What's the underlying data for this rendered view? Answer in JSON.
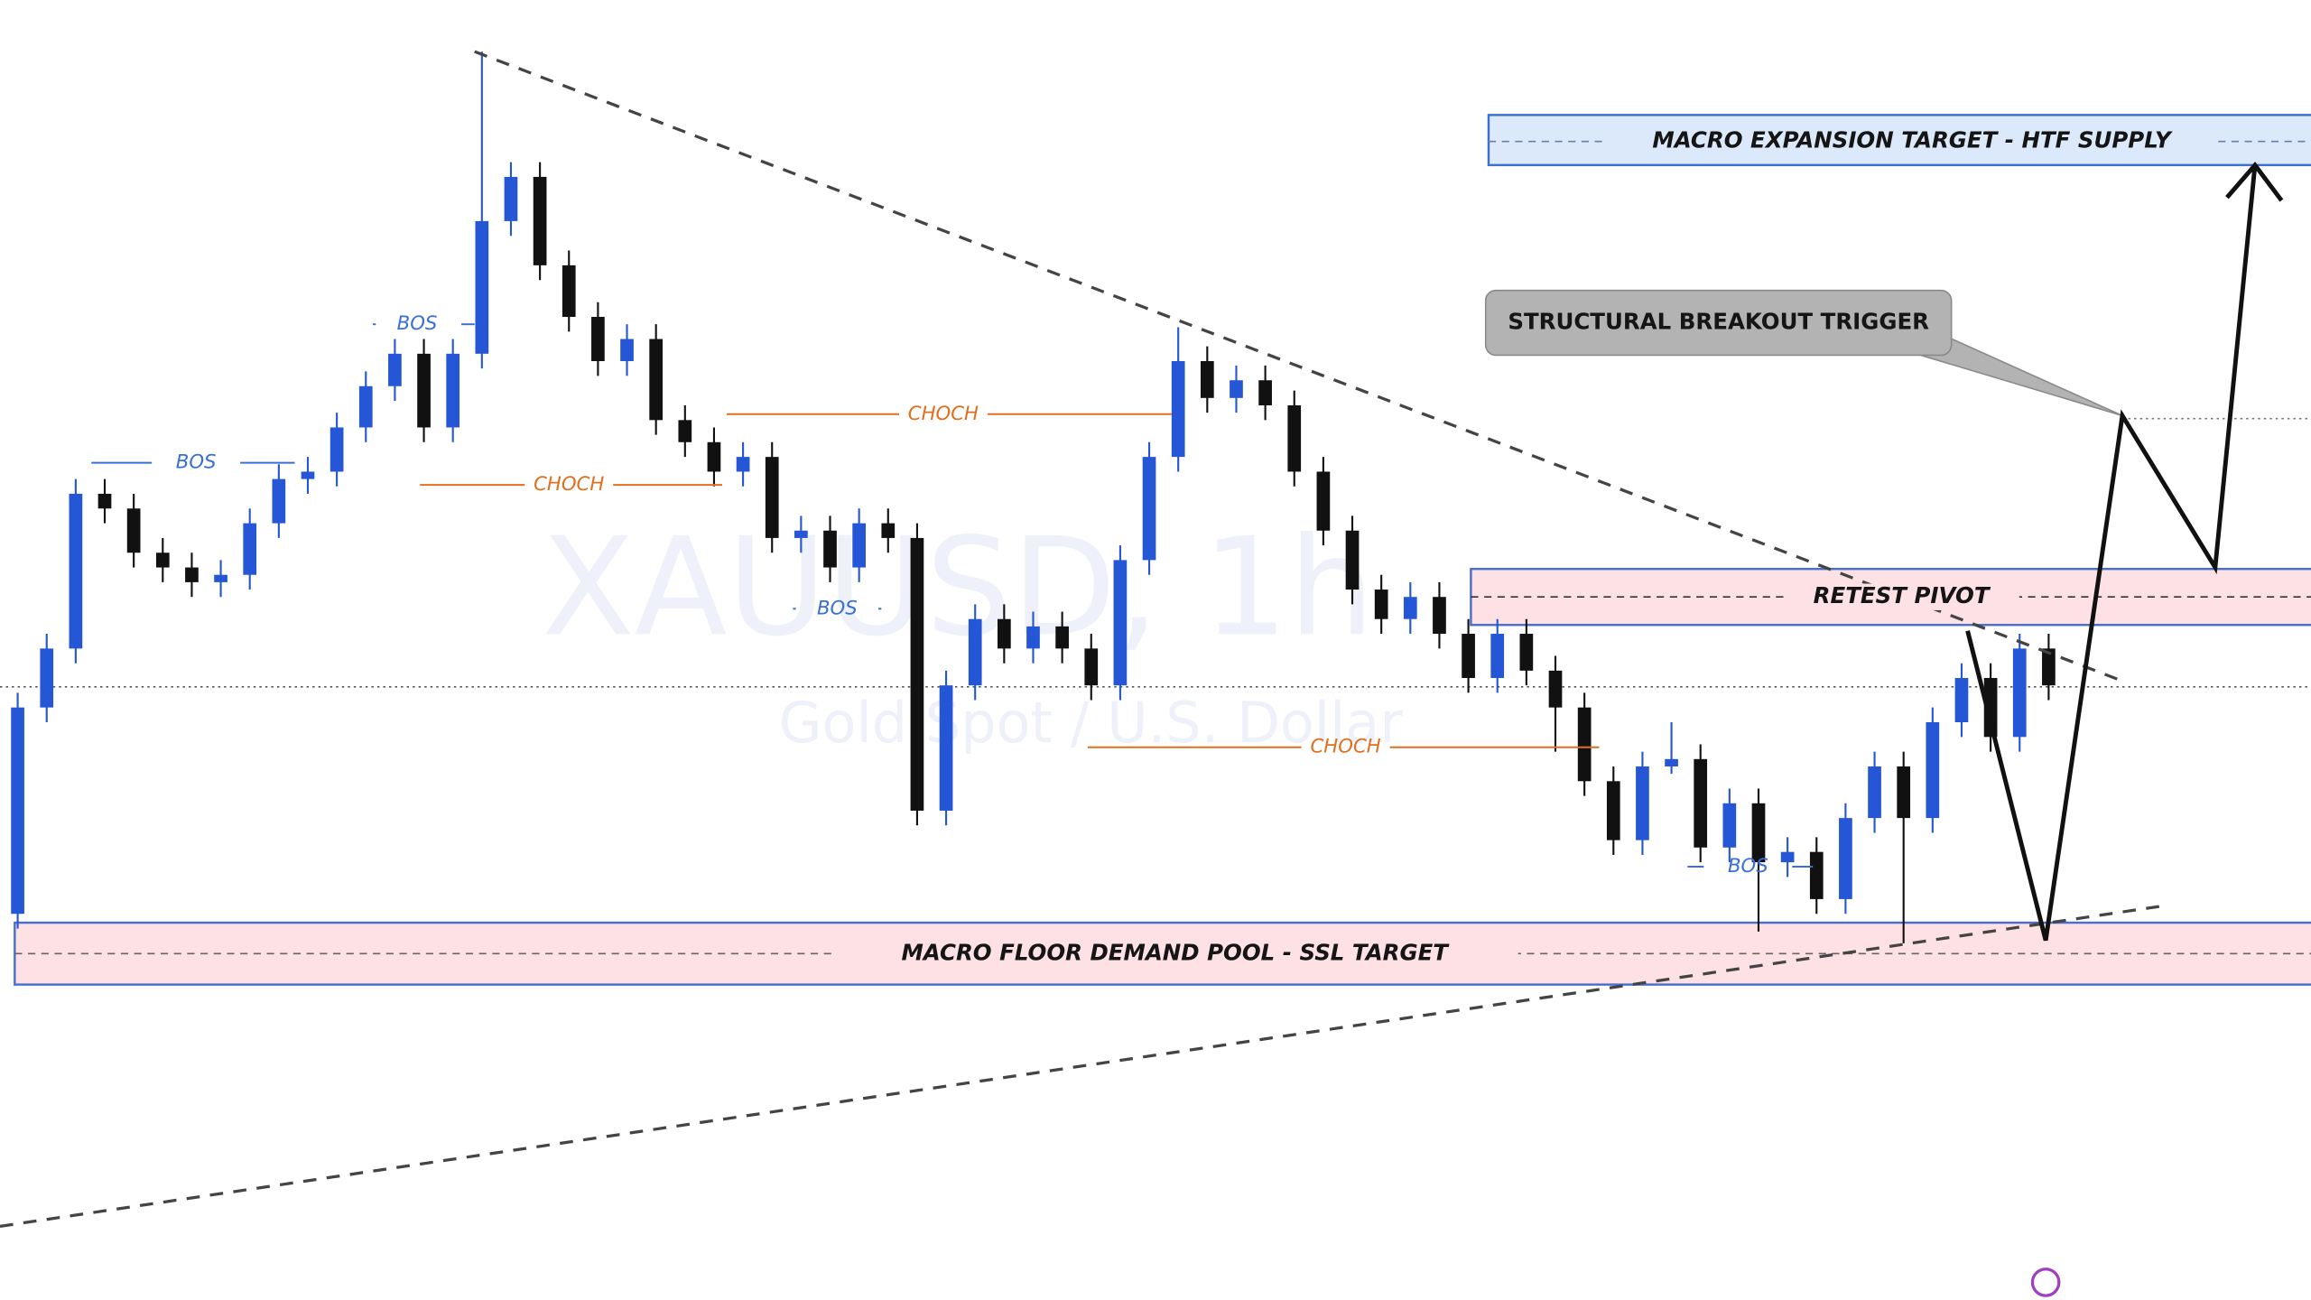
{
  "chart_data": {
    "type": "candlestick",
    "watermark": {
      "symbol": "XAUUSD, 1h",
      "description": "Gold Spot / U.S. Dollar"
    },
    "ylim": [
      0,
      882
    ],
    "up_color": "#2456d6",
    "down_color": "#111111",
    "open": [
      262,
      402,
      442,
      547,
      537,
      507,
      497,
      487,
      492,
      527,
      557,
      562,
      592,
      620,
      642,
      592,
      642,
      732,
      762,
      702,
      667,
      637,
      652,
      597,
      582,
      562,
      572,
      517,
      522,
      497,
      527,
      517,
      332,
      417,
      462,
      442,
      457,
      442,
      417,
      502,
      572,
      637,
      612,
      624,
      607,
      562,
      522,
      482,
      462,
      477,
      452,
      422,
      452,
      427,
      402,
      352,
      312,
      362,
      367,
      307,
      337,
      297,
      304,
      272,
      327,
      362,
      327,
      392,
      422,
      382,
      442
    ],
    "high": [
      412,
      452,
      557,
      557,
      547,
      517,
      507,
      502,
      537,
      567,
      572,
      602,
      630,
      652,
      652,
      652,
      847,
      772,
      772,
      712,
      677,
      662,
      662,
      607,
      592,
      582,
      582,
      532,
      532,
      537,
      537,
      527,
      427,
      472,
      472,
      467,
      467,
      452,
      512,
      582,
      660,
      647,
      634,
      634,
      617,
      572,
      532,
      492,
      487,
      487,
      462,
      462,
      462,
      437,
      412,
      362,
      372,
      392,
      377,
      347,
      347,
      314,
      314,
      337,
      372,
      372,
      402,
      432,
      432,
      452,
      452
    ],
    "low": [
      252,
      392,
      432,
      527,
      497,
      487,
      477,
      477,
      482,
      517,
      547,
      552,
      582,
      610,
      582,
      582,
      632,
      722,
      692,
      657,
      627,
      627,
      587,
      572,
      552,
      552,
      507,
      507,
      487,
      487,
      507,
      322,
      322,
      407,
      432,
      432,
      432,
      407,
      407,
      492,
      562,
      602,
      602,
      597,
      552,
      512,
      472,
      452,
      452,
      442,
      412,
      412,
      417,
      372,
      342,
      302,
      302,
      357,
      297,
      297,
      250,
      287,
      262,
      262,
      317,
      242,
      317,
      382,
      372,
      372,
      407
    ],
    "close": [
      402,
      442,
      547,
      537,
      507,
      497,
      487,
      492,
      527,
      557,
      562,
      592,
      620,
      642,
      592,
      642,
      732,
      762,
      702,
      667,
      637,
      652,
      597,
      582,
      562,
      572,
      517,
      522,
      497,
      527,
      517,
      332,
      417,
      462,
      442,
      457,
      442,
      417,
      502,
      572,
      637,
      612,
      624,
      607,
      562,
      522,
      482,
      462,
      477,
      452,
      422,
      452,
      427,
      402,
      352,
      312,
      362,
      367,
      307,
      337,
      297,
      304,
      272,
      327,
      362,
      327,
      392,
      422,
      382,
      442,
      417
    ],
    "annotations": [
      "BOS",
      "BOS",
      "CHOCH",
      "CHOCH",
      "BOS",
      "CHOCH",
      "BOS"
    ],
    "zones": [
      "MACRO EXPANSION TARGET - HTF SUPPLY",
      "RETEST PIVOT",
      "MACRO FLOOR DEMAND POOL - SSL TARGET"
    ],
    "callout": "STRUCTURAL BREAKOUT TRIGGER"
  }
}
